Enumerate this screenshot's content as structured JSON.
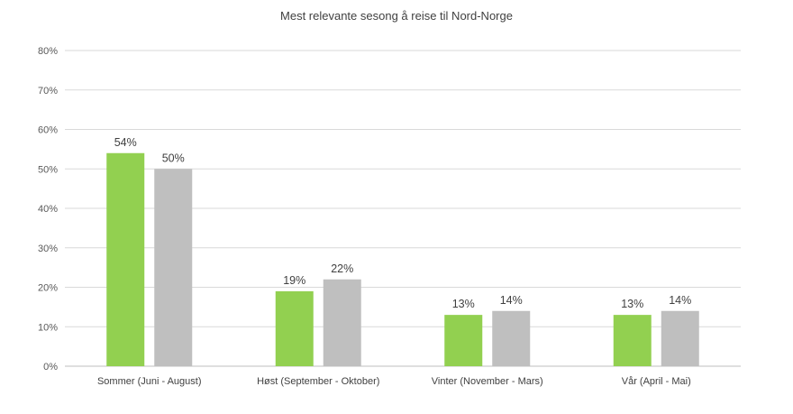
{
  "chart_data": {
    "type": "bar",
    "title": "Mest relevante sesong å reise til Nord-Norge",
    "categories": [
      "Sommer (Juni - August)",
      "Høst (September - Oktober)",
      "Vinter (November - Mars)",
      "Vår (April - Mai)"
    ],
    "series": [
      {
        "values": [
          54,
          19,
          13,
          13
        ],
        "data_labels": [
          "54%",
          "19%",
          "13%",
          "13%"
        ],
        "color": "#92d050"
      },
      {
        "values": [
          50,
          22,
          14,
          14
        ],
        "data_labels": [
          "50%",
          "22%",
          "14%",
          "14%"
        ],
        "color": "#bfbfbf"
      }
    ],
    "ylim": [
      0,
      80
    ],
    "yticks": [
      0,
      10,
      20,
      30,
      40,
      50,
      60,
      70,
      80
    ],
    "ytick_labels": [
      "0%",
      "10%",
      "20%",
      "30%",
      "40%",
      "50%",
      "60%",
      "70%",
      "80%"
    ],
    "xlabel": "",
    "ylabel": "",
    "grid": true,
    "legend": "none"
  }
}
